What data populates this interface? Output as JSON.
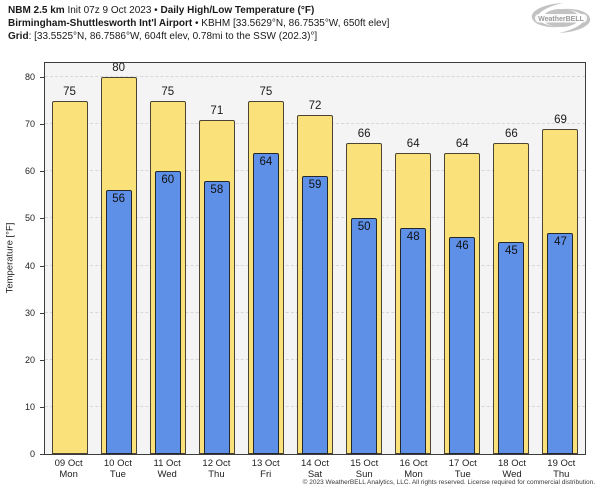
{
  "header": {
    "line1_bold1": "NBM 2.5 km",
    "line1_text": " Init 07z 9 Oct 2023 • ",
    "line1_bold2": "Daily High/Low Temperature (°F)",
    "line2_bold": "Birmingham-Shuttlesworth Int'l Airport",
    "line2_text": " • KBHM [33.5629°N, 86.7535°W, 650ft elev]",
    "line3_bold": "Grid",
    "line3_text": ": [33.5525°N, 86.7586°W, 604ft elev, 0.78mi to the SSW (202.3)°]"
  },
  "logo": {
    "label": "WeatherBELL"
  },
  "chart_data": {
    "type": "bar",
    "title": "NBM 2.5 km Init 07z 9 Oct 2023 • Daily High/Low Temperature (°F)",
    "station": "Birmingham-Shuttlesworth Int'l Airport • KBHM [33.5629°N, 86.7535°W, 650ft elev]",
    "grid_point": "[33.5525°N, 86.7586°W, 604ft elev, 0.78mi to the SSW (202.3)°]",
    "ylabel": "Temperature [°F]",
    "ylim": [
      0,
      83
    ],
    "yticks": [
      0,
      10,
      20,
      30,
      40,
      50,
      60,
      70,
      80
    ],
    "grid": "horizontal-dashed",
    "legend_position": "none",
    "categories": [
      "09 Oct",
      "10 Oct",
      "11 Oct",
      "12 Oct",
      "13 Oct",
      "14 Oct",
      "15 Oct",
      "16 Oct",
      "17 Oct",
      "18 Oct",
      "19 Oct"
    ],
    "day_labels": [
      "Mon",
      "Tue",
      "Wed",
      "Thu",
      "Fri",
      "Sat",
      "Sun",
      "Mon",
      "Tue",
      "Wed",
      "Thu"
    ],
    "series": [
      {
        "name": "Daily High",
        "color": "#fae17a",
        "values": [
          75,
          80,
          75,
          71,
          75,
          72,
          66,
          64,
          64,
          66,
          69
        ]
      },
      {
        "name": "Daily Low",
        "color": "#5e90e8",
        "values": [
          null,
          56,
          60,
          58,
          64,
          59,
          50,
          48,
          46,
          45,
          47
        ]
      }
    ]
  },
  "footer": "© 2023 WeatherBELL Analytics, LLC. All rights reserved. License required for commercial distribution."
}
